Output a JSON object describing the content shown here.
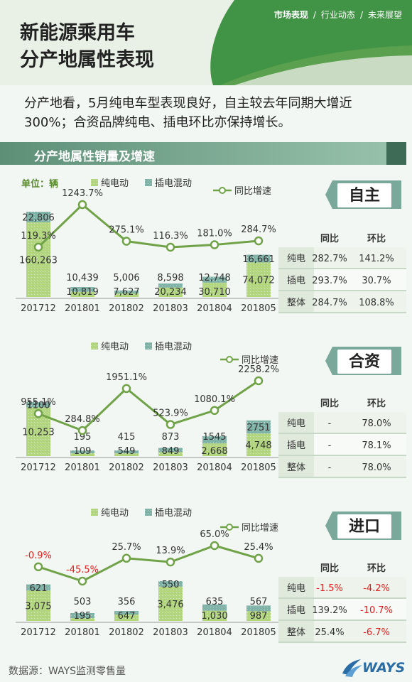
{
  "header": {
    "nav": [
      "市场表现",
      "行业动态",
      "未来展望"
    ],
    "nav_sep": "/",
    "title_line1": "新能源乘用车",
    "title_line2": "分产地属性表现"
  },
  "intro": "分产地看，5月纯电车型表现良好，自主较去年同期大增近300%；合资品牌纯电、插电环比亦保持增长。",
  "section_title": "分产地属性销量及增速",
  "footer": {
    "source": "数据源：WAYS监测零售量",
    "logo": "WAYS"
  },
  "colors": {
    "bev": "#b2d67e",
    "phev": "#7fb3a7",
    "growth_line": "#70a347",
    "negative": "#e02020"
  },
  "chart_data": [
    {
      "type": "bar",
      "name": "自主",
      "unit": "单位：辆",
      "stacked": true,
      "legend": [
        "纯电动",
        "插电混动",
        "同比增速"
      ],
      "categories": [
        "201712",
        "201801",
        "201802",
        "201803",
        "201804",
        "201805"
      ],
      "series": [
        {
          "name": "纯电动",
          "values": [
            160263,
            10819,
            7627,
            20234,
            30710,
            74072
          ]
        },
        {
          "name": "插电混动",
          "values": [
            22806,
            10439,
            5006,
            8598,
            12748,
            16661
          ]
        }
      ],
      "line": {
        "name": "同比增速",
        "values": [
          119.3,
          1243.7,
          275.1,
          116.3,
          181.0,
          284.7
        ],
        "labels": [
          "119.3%",
          "1243.7%",
          "275.1%",
          "116.3%",
          "181.0%",
          "284.7%"
        ]
      },
      "labels": {
        "bev": [
          "160,263",
          "10,819",
          "7,627",
          "20,234",
          "30,710",
          "74,072"
        ],
        "phev": [
          "22,806",
          "10,439",
          "5,006",
          "8,598",
          "12,748",
          "16,661"
        ]
      },
      "table": {
        "headers": [
          "",
          "同比",
          "环比"
        ],
        "rows": [
          [
            "纯电",
            "282.7%",
            "141.2%"
          ],
          [
            "插电",
            "293.7%",
            "30.7%"
          ],
          [
            "整体",
            "284.7%",
            "108.8%"
          ]
        ]
      }
    },
    {
      "type": "bar",
      "name": "合资",
      "stacked": true,
      "legend": [
        "纯电动",
        "插电混动",
        "同比增速"
      ],
      "categories": [
        "201712",
        "201801",
        "201802",
        "201803",
        "201804",
        "201805"
      ],
      "series": [
        {
          "name": "纯电动",
          "values": [
            10253,
            109,
            549,
            849,
            2668,
            4748
          ]
        },
        {
          "name": "插电混动",
          "values": [
            1100,
            195,
            415,
            873,
            1545,
            2751
          ]
        }
      ],
      "line": {
        "name": "同比增速",
        "values": [
          955.1,
          284.8,
          1951.1,
          523.9,
          1080.1,
          2258.2
        ],
        "labels": [
          "955.1%",
          "284.8%",
          "1951.1%",
          "523.9%",
          "1080.1%",
          "2258.2%"
        ]
      },
      "labels": {
        "bev": [
          "10,253",
          "109",
          "549",
          "849",
          "2,668",
          "4,748"
        ],
        "phev": [
          "1100",
          "195",
          "415",
          "873",
          "1545",
          "2751"
        ]
      },
      "table": {
        "headers": [
          "",
          "同比",
          "环比"
        ],
        "rows": [
          [
            "纯电",
            "-",
            "78.0%"
          ],
          [
            "插电",
            "-",
            "78.1%"
          ],
          [
            "整体",
            "-",
            "78.0%"
          ]
        ]
      }
    },
    {
      "type": "bar",
      "name": "进口",
      "stacked": true,
      "legend": [
        "纯电动",
        "插电混动",
        "同比增速"
      ],
      "categories": [
        "201712",
        "201801",
        "201802",
        "201803",
        "201804",
        "201805"
      ],
      "series": [
        {
          "name": "纯电动",
          "values": [
            3075,
            195,
            647,
            3476,
            1030,
            987
          ]
        },
        {
          "name": "插电混动",
          "values": [
            621,
            503,
            356,
            550,
            635,
            567
          ]
        }
      ],
      "line": {
        "name": "同比增速",
        "values": [
          -0.9,
          -45.5,
          25.7,
          13.9,
          65.0,
          25.4
        ],
        "labels": [
          "-0.9%",
          "-45.5%",
          "25.7%",
          "13.9%",
          "65.0%",
          "25.4%"
        ]
      },
      "labels": {
        "bev": [
          "3,075",
          "195",
          "647",
          "3,476",
          "1,030",
          "987"
        ],
        "phev": [
          "621",
          "503",
          "356",
          "550",
          "635",
          "567"
        ]
      },
      "table": {
        "headers": [
          "",
          "同比",
          "环比"
        ],
        "rows": [
          [
            "纯电",
            "-1.5%",
            "-4.2%"
          ],
          [
            "插电",
            "139.2%",
            "-10.7%"
          ],
          [
            "整体",
            "25.4%",
            "-6.7%"
          ]
        ]
      }
    }
  ]
}
